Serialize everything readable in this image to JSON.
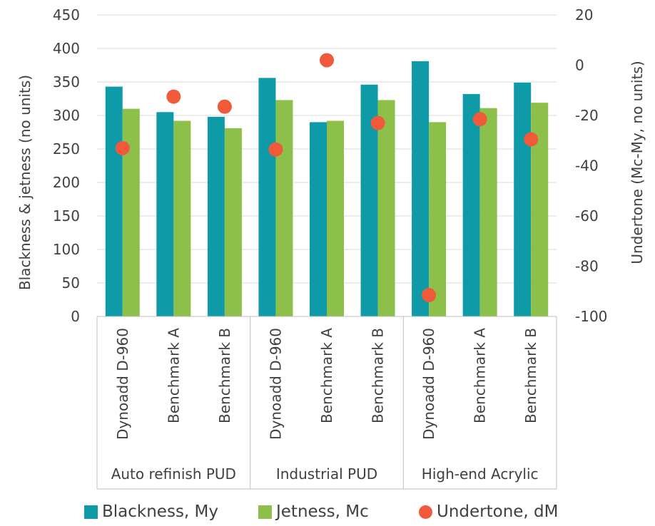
{
  "chart_data": {
    "type": "bar",
    "groups": [
      {
        "name": "Auto refinish PUD",
        "categories": [
          "Dynoadd D-960",
          "Benchmark A",
          "Benchmark B"
        ]
      },
      {
        "name": "Industrial PUD",
        "categories": [
          "Dynoadd D-960",
          "Benchmark A",
          "Benchmark B"
        ]
      },
      {
        "name": "High-end Acrylic",
        "categories": [
          "Dynoadd D-960",
          "Benchmark A",
          "Benchmark B"
        ]
      }
    ],
    "series": [
      {
        "name": "Blackness, My",
        "type": "bar",
        "axis": "left",
        "color": "#0E9AA7",
        "values": [
          343,
          305,
          298,
          356,
          290,
          346,
          381,
          332,
          349
        ]
      },
      {
        "name": "Jetness, Mc",
        "type": "bar",
        "axis": "left",
        "color": "#8CC04A",
        "values": [
          310,
          292,
          281,
          323,
          292,
          323,
          290,
          311,
          319
        ]
      },
      {
        "name": "Undertone, dM",
        "type": "scatter",
        "axis": "right",
        "color": "#F05A3A",
        "values": [
          -33,
          -12.5,
          -16.5,
          -33.5,
          2,
          -23,
          -91.5,
          -21.5,
          -29.5
        ]
      }
    ],
    "ylabel": "Blackness & jetness (no units)",
    "y2label": "Undertone (Mc-My, no units)",
    "ylim": [
      0,
      450
    ],
    "yticks": [
      0,
      50,
      100,
      150,
      200,
      250,
      300,
      350,
      400,
      450
    ],
    "y2lim": [
      -100,
      20
    ],
    "y2ticks": [
      -100,
      -80,
      -60,
      -40,
      -20,
      0,
      20
    ],
    "grid": true,
    "legend_position": "bottom"
  }
}
